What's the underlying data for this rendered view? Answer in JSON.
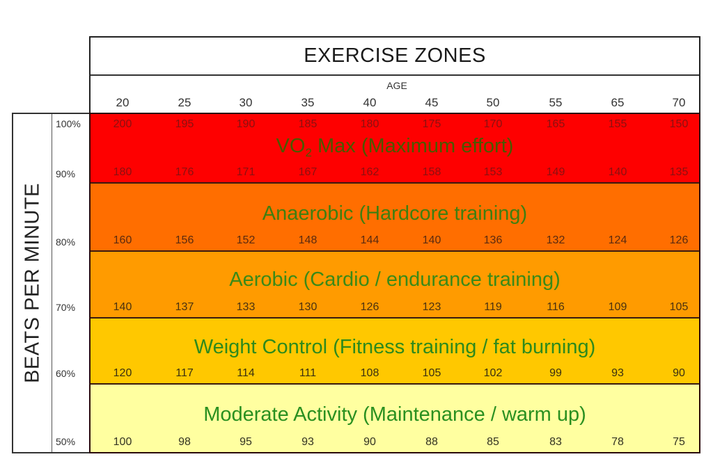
{
  "chart_data": {
    "type": "table",
    "title": "EXERCISE ZONES",
    "xlabel": "AGE",
    "ylabel": "BEATS PER MINUTE",
    "ages": [
      20,
      25,
      30,
      35,
      40,
      45,
      50,
      55,
      65,
      70
    ],
    "percent_labels": [
      "100%",
      "90%",
      "80%",
      "70%",
      "60%",
      "50%"
    ],
    "rows": [
      {
        "percent": "100%",
        "bpm": [
          200,
          195,
          190,
          185,
          180,
          175,
          170,
          165,
          155,
          150
        ]
      },
      {
        "percent": "90%",
        "bpm": [
          180,
          176,
          171,
          167,
          162,
          158,
          153,
          149,
          140,
          135
        ]
      },
      {
        "percent": "80%",
        "bpm": [
          160,
          156,
          152,
          148,
          144,
          140,
          136,
          132,
          124,
          126
        ]
      },
      {
        "percent": "70%",
        "bpm": [
          140,
          137,
          133,
          130,
          126,
          123,
          119,
          116,
          109,
          105
        ]
      },
      {
        "percent": "60%",
        "bpm": [
          120,
          117,
          114,
          111,
          108,
          105,
          102,
          99,
          93,
          90
        ]
      },
      {
        "percent": "50%",
        "bpm": [
          100,
          98,
          95,
          93,
          90,
          88,
          85,
          83,
          78,
          75
        ]
      }
    ],
    "zones": [
      {
        "name": "VO2 Max (Maximum effort)",
        "range": [
          "90%",
          "100%"
        ],
        "color": "#fe0000"
      },
      {
        "name": "Anaerobic (Hardcore training)",
        "range": [
          "80%",
          "90%"
        ],
        "color": "#ff6e00"
      },
      {
        "name": "Aerobic (Cardio / endurance training)",
        "range": [
          "70%",
          "80%"
        ],
        "color": "#ff9b00"
      },
      {
        "name": "Weight Control (Fitness training / fat burning)",
        "range": [
          "60%",
          "70%"
        ],
        "color": "#ffc800"
      },
      {
        "name": "Moderate Activity (Maintenance / warm up)",
        "range": [
          "50%",
          "60%"
        ],
        "color": "#ffffa0"
      }
    ]
  },
  "header": {
    "title": "EXERCISE ZONES",
    "age_label": "AGE",
    "ages": [
      "20",
      "25",
      "30",
      "35",
      "40",
      "45",
      "50",
      "55",
      "65",
      "70"
    ]
  },
  "side": {
    "ylabel": "BEATS PER MINUTE",
    "percents": [
      "100%",
      "90%",
      "80%",
      "70%",
      "60%",
      "50%"
    ]
  },
  "bands": [
    {
      "label_main": "VO",
      "label_sub": "2",
      "label_rest": " Max (Maximum effort)",
      "color": "#fe0000",
      "label_color": "#4a5a00",
      "value_color": "#8a1010",
      "top_values": [
        "200",
        "195",
        "190",
        "185",
        "180",
        "175",
        "170",
        "165",
        "155",
        "150"
      ],
      "bottom_values": [
        "180",
        "176",
        "171",
        "167",
        "162",
        "158",
        "153",
        "149",
        "140",
        "135"
      ]
    },
    {
      "label": "Anaerobic (Hardcore training)",
      "color": "#ff6e00",
      "label_color": "#3f7f10",
      "value_color": "#5a2a10",
      "bottom_values": [
        "160",
        "156",
        "152",
        "148",
        "144",
        "140",
        "136",
        "132",
        "124",
        "126"
      ]
    },
    {
      "label": "Aerobic (Cardio / endurance training)",
      "color": "#ff9b00",
      "label_color": "#3a8a18",
      "value_color": "#4a3210",
      "bottom_values": [
        "140",
        "137",
        "133",
        "130",
        "126",
        "123",
        "119",
        "116",
        "109",
        "105"
      ]
    },
    {
      "label": "Weight Control (Fitness training / fat burning)",
      "color": "#ffc800",
      "label_color": "#2e8a1c",
      "value_color": "#3a3010",
      "bottom_values": [
        "120",
        "117",
        "114",
        "111",
        "108",
        "105",
        "102",
        "99",
        "93",
        "90"
      ]
    },
    {
      "label": "Moderate Activity (Maintenance / warm up)",
      "color": "#ffffa0",
      "label_color": "#2a9020",
      "value_color": "#333322",
      "bottom_values": [
        "100",
        "98",
        "95",
        "93",
        "90",
        "88",
        "85",
        "83",
        "78",
        "75"
      ]
    }
  ]
}
